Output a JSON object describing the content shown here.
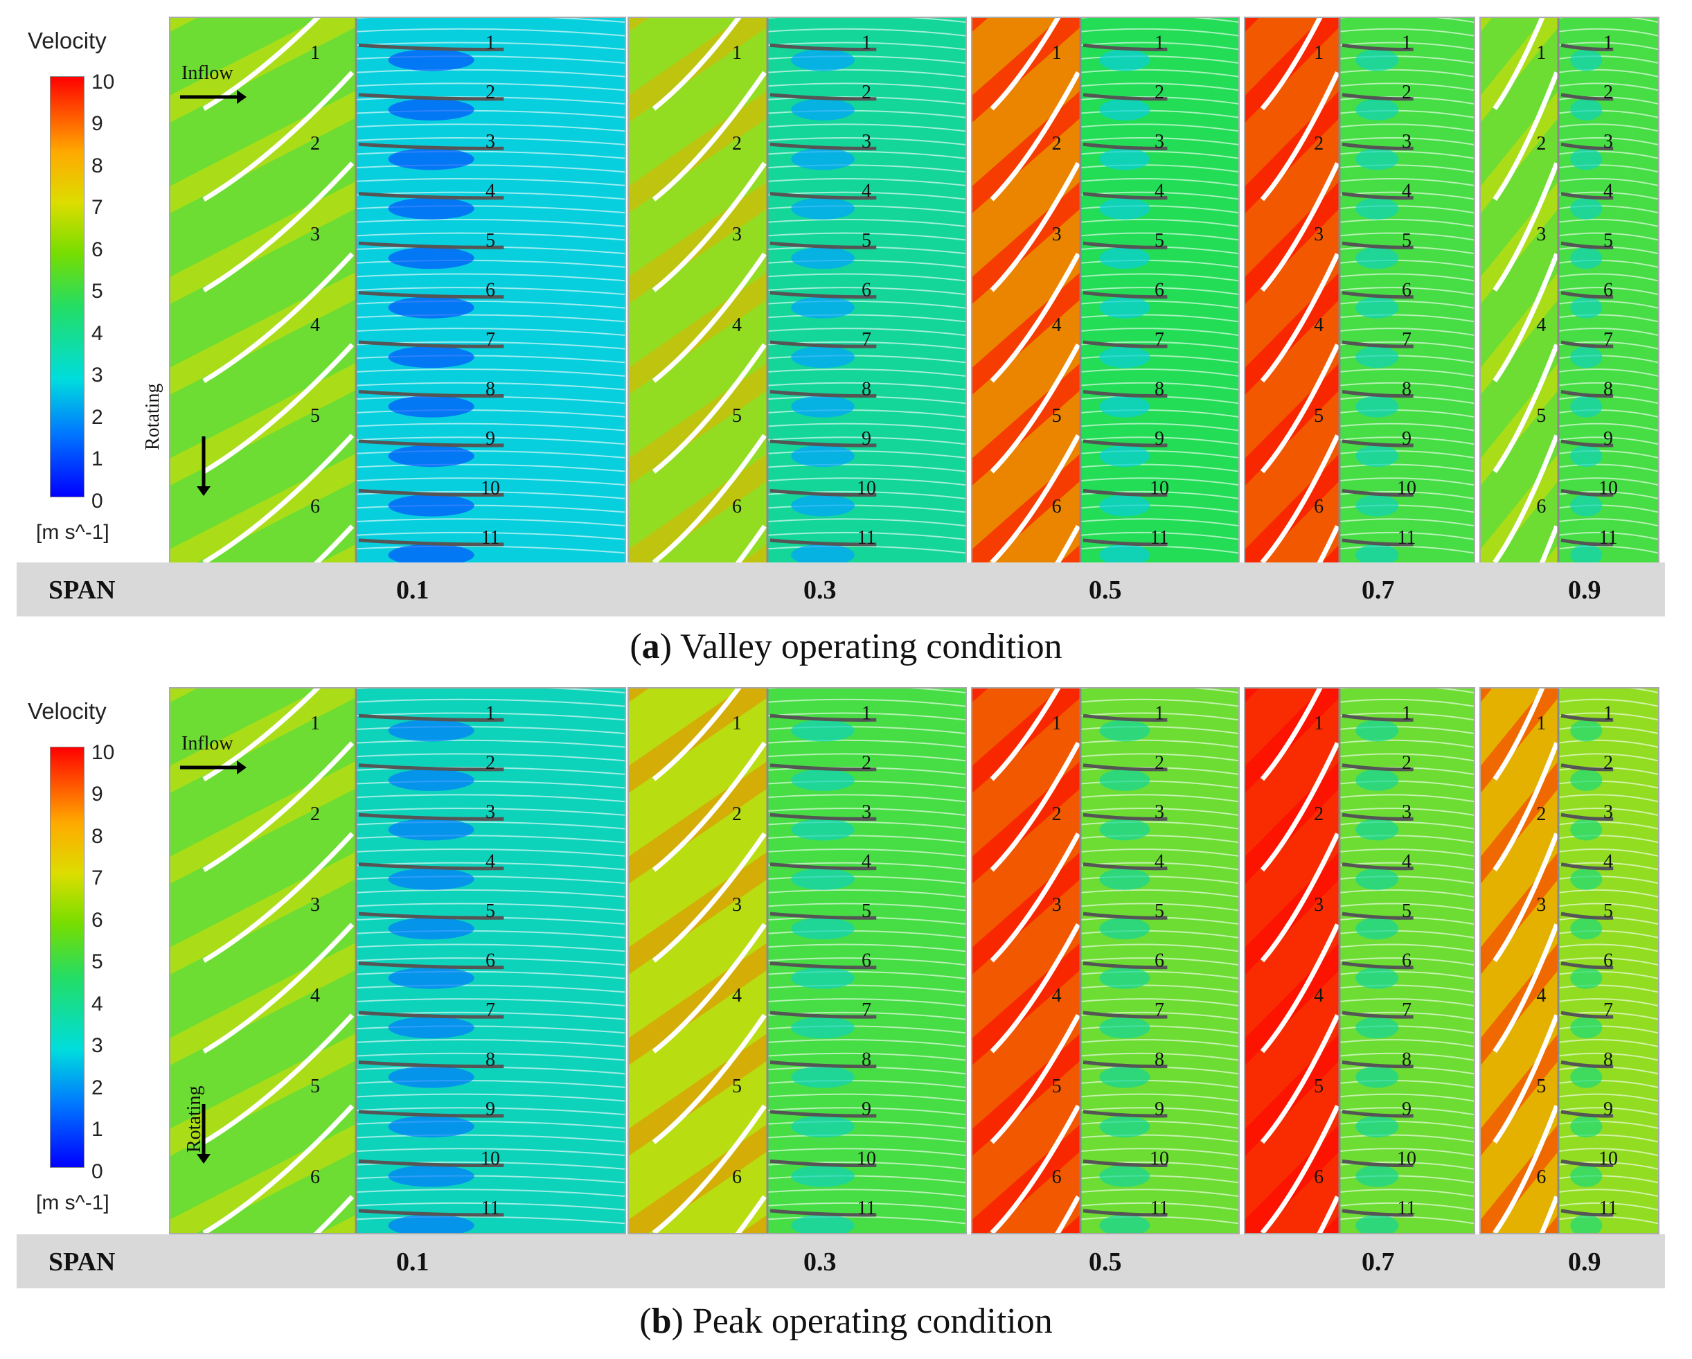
{
  "legend": {
    "title": "Velocity",
    "ticks": [
      "10",
      "9",
      "8",
      "7",
      "6",
      "5",
      "4",
      "3",
      "2",
      "1",
      "0"
    ],
    "units": "[m s^-1]"
  },
  "annotations": {
    "inflow": "Inflow",
    "rotating": "Rotating"
  },
  "span_row": {
    "label": "SPAN",
    "values": [
      "0.1",
      "0.3",
      "0.5",
      "0.7",
      "0.9"
    ]
  },
  "captions": {
    "a": {
      "letter": "a",
      "text": "Valley operating condition"
    },
    "b": {
      "letter": "b",
      "text": "Peak operating condition"
    }
  },
  "colorscale": {
    "min": 0,
    "max": 10,
    "colors": [
      "#0000ff",
      "#00ccff",
      "#22dd55",
      "#dddd00",
      "#ff0000"
    ]
  },
  "panels": {
    "a": [
      {
        "span": "0.1",
        "rotor": [
          "1",
          "2",
          "3",
          "4",
          "5",
          "6"
        ],
        "stator": [
          "1",
          "2",
          "3",
          "4",
          "5",
          "6",
          "7",
          "8",
          "9",
          "10",
          "11"
        ],
        "rotor_level": 6,
        "stator_level": 3
      },
      {
        "span": "0.3",
        "rotor": [
          "1",
          "2",
          "3",
          "4",
          "5",
          "6"
        ],
        "stator": [
          "1",
          "2",
          "3",
          "4",
          "5",
          "6",
          "7",
          "8",
          "9",
          "10",
          "11"
        ],
        "rotor_level": 6.5,
        "stator_level": 4
      },
      {
        "span": "0.5",
        "rotor": [
          "1",
          "2",
          "3",
          "4",
          "5",
          "6"
        ],
        "stator": [
          "1",
          "2",
          "3",
          "4",
          "5",
          "6",
          "7",
          "8",
          "9",
          "10",
          "11"
        ],
        "rotor_level": 8.5,
        "stator_level": 5
      },
      {
        "span": "0.7",
        "rotor": [
          "1",
          "2",
          "3",
          "4",
          "5",
          "6"
        ],
        "stator": [
          "1",
          "2",
          "3",
          "4",
          "5",
          "6",
          "7",
          "8",
          "9",
          "10",
          "11"
        ],
        "rotor_level": 9,
        "stator_level": 5.5
      },
      {
        "span": "0.9",
        "rotor": [
          "1",
          "2",
          "3",
          "4",
          "5",
          "6"
        ],
        "stator": [
          "1",
          "2",
          "3",
          "4",
          "5",
          "6",
          "7",
          "8",
          "9",
          "10",
          "11"
        ],
        "rotor_level": 6,
        "stator_level": 5.5
      }
    ],
    "b": [
      {
        "span": "0.1",
        "rotor": [
          "1",
          "2",
          "3",
          "4",
          "5",
          "6"
        ],
        "stator": [
          "1",
          "2",
          "3",
          "4",
          "5",
          "6",
          "7",
          "8",
          "9",
          "10",
          "11"
        ],
        "rotor_level": 6,
        "stator_level": 3.5
      },
      {
        "span": "0.3",
        "rotor": [
          "1",
          "2",
          "3",
          "4",
          "5",
          "6"
        ],
        "stator": [
          "1",
          "2",
          "3",
          "4",
          "5",
          "6",
          "7",
          "8",
          "9",
          "10",
          "11"
        ],
        "rotor_level": 7,
        "stator_level": 5.5
      },
      {
        "span": "0.5",
        "rotor": [
          "1",
          "2",
          "3",
          "4",
          "5",
          "6"
        ],
        "stator": [
          "1",
          "2",
          "3",
          "4",
          "5",
          "6",
          "7",
          "8",
          "9",
          "10",
          "11"
        ],
        "rotor_level": 9,
        "stator_level": 6
      },
      {
        "span": "0.7",
        "rotor": [
          "1",
          "2",
          "3",
          "4",
          "5",
          "6"
        ],
        "stator": [
          "1",
          "2",
          "3",
          "4",
          "5",
          "6",
          "7",
          "8",
          "9",
          "10",
          "11"
        ],
        "rotor_level": 9.5,
        "stator_level": 6
      },
      {
        "span": "0.9",
        "rotor": [
          "1",
          "2",
          "3",
          "4",
          "5",
          "6"
        ],
        "stator": [
          "1",
          "2",
          "3",
          "4",
          "5",
          "6",
          "7",
          "8",
          "9",
          "10",
          "11"
        ],
        "rotor_level": 8,
        "stator_level": 6.5
      }
    ]
  }
}
